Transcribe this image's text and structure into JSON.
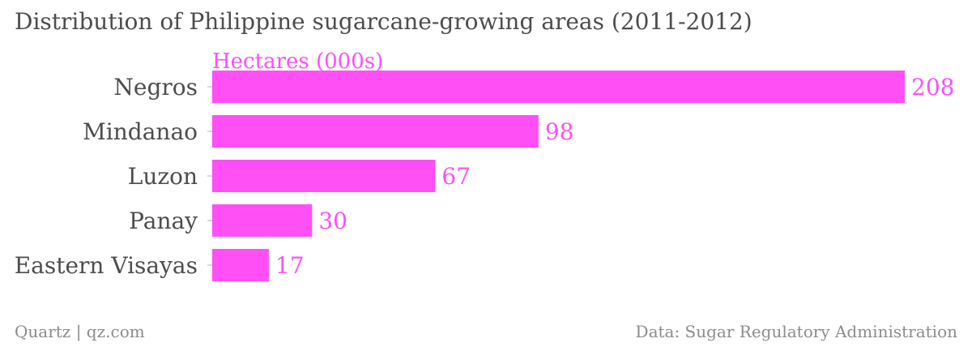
{
  "chart_data": {
    "type": "bar",
    "orientation": "horizontal",
    "title": "Distribution of Philippine sugarcane-growing areas (2011-2012)",
    "series": [
      {
        "name": "Hectares (000s)",
        "values": [
          208,
          98,
          67,
          30,
          17
        ]
      }
    ],
    "categories": [
      "Negros",
      "Mindanao",
      "Luzon",
      "Panay",
      "Eastern Visayas"
    ],
    "xlim": [
      0,
      208
    ],
    "grid": false,
    "bar_color": "#ff4ff5",
    "label_color": "#ff4ff5"
  },
  "footer": {
    "left": "Quartz | qz.com",
    "right": "Data: Sugar Regulatory Administration"
  }
}
